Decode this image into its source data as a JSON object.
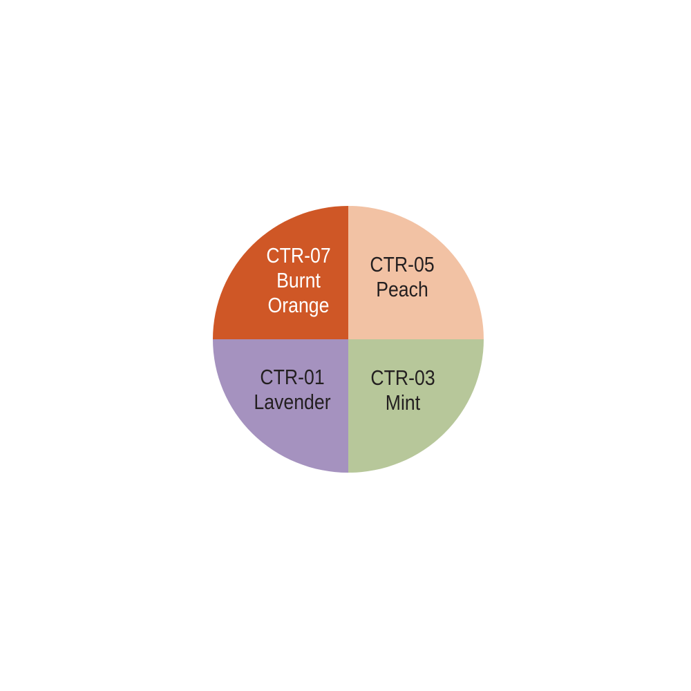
{
  "swatches": [
    {
      "code": "CTR-07",
      "name_lines": [
        "Burnt",
        "Orange"
      ],
      "color": "#CF5726",
      "text_color": "#FFFFFF",
      "quadrant": "top-left"
    },
    {
      "code": "CTR-05",
      "name_lines": [
        "Peach"
      ],
      "color": "#F2C2A4",
      "text_color": "#231F20",
      "quadrant": "top-right"
    },
    {
      "code": "CTR-01",
      "name_lines": [
        "Lavender"
      ],
      "color": "#A592BF",
      "text_color": "#231F20",
      "quadrant": "bottom-left"
    },
    {
      "code": "CTR-03",
      "name_lines": [
        "Mint"
      ],
      "color": "#B7C79A",
      "text_color": "#231F20",
      "quadrant": "bottom-right"
    }
  ]
}
